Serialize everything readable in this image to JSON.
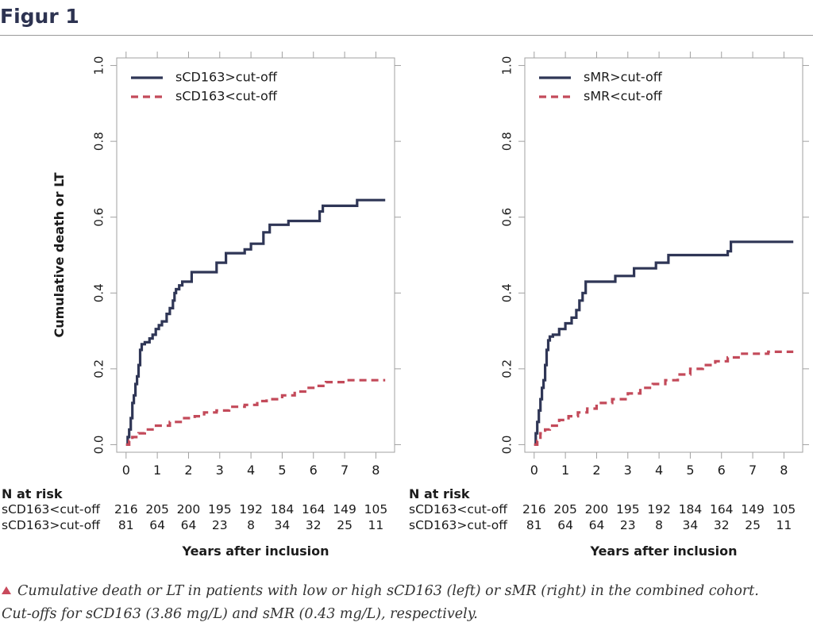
{
  "header": {
    "title": "Figur 1"
  },
  "caption": {
    "lines": [
      "Cumulative death or LT in patients with low or high sCD163 (left) or sMR (right) in the combined cohort.",
      "Cut-offs for sCD163 (3.86 mg/L) and sMR (0.43 mg/L), respectively."
    ],
    "marker_color": "#c84a5c"
  },
  "chart_data": [
    {
      "type": "line",
      "xlabel": "Years after inclusion",
      "ylabel": "Cumulative death or LT",
      "x_ticks": [
        0,
        1,
        2,
        3,
        4,
        5,
        6,
        7,
        8
      ],
      "x_tick_labels": [
        "0",
        "1",
        "2",
        "3",
        "4",
        "5",
        "6",
        "7",
        "8"
      ],
      "y_ticks": [
        0,
        0.2,
        0.4,
        0.6,
        0.8,
        1
      ],
      "y_tick_labels": [
        "0.0",
        "0.2",
        "0.4",
        "0.6",
        "0.8",
        "1.0"
      ],
      "xlim": [
        -0.3,
        8.6
      ],
      "ylim": [
        -0.02,
        1.02
      ],
      "grid": false,
      "legend_position": "top-left",
      "series": [
        {
          "name": "sCD163>cut-off",
          "color": "#2f3656",
          "dash": "solid",
          "x": [
            0,
            0.05,
            0.1,
            0.15,
            0.2,
            0.25,
            0.3,
            0.35,
            0.4,
            0.45,
            0.5,
            0.6,
            0.75,
            0.85,
            0.95,
            1.05,
            1.15,
            1.3,
            1.4,
            1.5,
            1.55,
            1.6,
            1.7,
            1.8,
            2.1,
            2.9,
            3.2,
            3.8,
            4.0,
            4.4,
            4.6,
            5.2,
            6.2,
            6.3,
            7.4,
            8.3
          ],
          "y": [
            0,
            0.02,
            0.04,
            0.07,
            0.11,
            0.13,
            0.16,
            0.18,
            0.21,
            0.25,
            0.265,
            0.27,
            0.28,
            0.29,
            0.305,
            0.315,
            0.325,
            0.345,
            0.36,
            0.38,
            0.4,
            0.41,
            0.42,
            0.43,
            0.455,
            0.48,
            0.505,
            0.515,
            0.53,
            0.56,
            0.58,
            0.59,
            0.615,
            0.63,
            0.645,
            0.645
          ]
        },
        {
          "name": "sCD163<cut-off",
          "color": "#c34a5a",
          "dash": "dashed",
          "x": [
            0,
            0.1,
            0.2,
            0.4,
            0.6,
            0.9,
            1.4,
            1.8,
            2.2,
            2.5,
            2.9,
            3.3,
            3.8,
            4.2,
            4.5,
            5.0,
            5.4,
            5.8,
            6.1,
            6.4,
            7.0,
            8.3
          ],
          "y": [
            0,
            0.01,
            0.02,
            0.03,
            0.04,
            0.05,
            0.06,
            0.07,
            0.075,
            0.085,
            0.09,
            0.1,
            0.105,
            0.115,
            0.12,
            0.13,
            0.14,
            0.15,
            0.155,
            0.165,
            0.17,
            0.17
          ]
        }
      ],
      "risk_table": {
        "heading": "N at risk",
        "rows": [
          {
            "label": "sCD163<cut-off",
            "values": [
              "216",
              "205",
              "200",
              "195",
              "192",
              "184",
              "164",
              "149",
              "105"
            ]
          },
          {
            "label": "sCD163>cut-off",
            "values": [
              "81",
              "64",
              "64",
              "23",
              "8",
              "34",
              "32",
              "25",
              "11"
            ]
          }
        ]
      }
    },
    {
      "type": "line",
      "xlabel": "Years after inclusion",
      "ylabel": "",
      "x_ticks": [
        0,
        1,
        2,
        3,
        4,
        5,
        6,
        7,
        8
      ],
      "x_tick_labels": [
        "0",
        "1",
        "2",
        "3",
        "4",
        "5",
        "6",
        "7",
        "8"
      ],
      "y_ticks": [
        0,
        0.2,
        0.4,
        0.6,
        0.8,
        1
      ],
      "y_tick_labels": [
        "0.0",
        "0.2",
        "0.4",
        "0.6",
        "0.8",
        "1.0"
      ],
      "xlim": [
        -0.3,
        8.6
      ],
      "ylim": [
        -0.02,
        1.02
      ],
      "grid": false,
      "legend_position": "top-left",
      "series": [
        {
          "name": "sMR>cut-off",
          "color": "#2f3656",
          "dash": "solid",
          "x": [
            0,
            0.05,
            0.1,
            0.15,
            0.2,
            0.25,
            0.3,
            0.35,
            0.4,
            0.45,
            0.5,
            0.6,
            0.8,
            1.0,
            1.2,
            1.35,
            1.45,
            1.55,
            1.65,
            2.6,
            3.2,
            3.9,
            4.3,
            6.2,
            6.3,
            8.3
          ],
          "y": [
            0,
            0.03,
            0.06,
            0.09,
            0.12,
            0.15,
            0.17,
            0.21,
            0.25,
            0.275,
            0.285,
            0.29,
            0.305,
            0.32,
            0.335,
            0.355,
            0.38,
            0.4,
            0.43,
            0.445,
            0.465,
            0.48,
            0.5,
            0.51,
            0.535,
            0.535
          ]
        },
        {
          "name": "sMR<cut-off",
          "color": "#c34a5a",
          "dash": "dashed",
          "x": [
            0,
            0.1,
            0.2,
            0.35,
            0.5,
            0.8,
            1.1,
            1.4,
            1.7,
            2.0,
            2.5,
            3.0,
            3.4,
            3.8,
            4.2,
            4.6,
            5.0,
            5.4,
            5.8,
            6.2,
            6.6,
            7.5,
            8.3
          ],
          "y": [
            0,
            0.01,
            0.03,
            0.04,
            0.05,
            0.065,
            0.075,
            0.085,
            0.095,
            0.11,
            0.12,
            0.135,
            0.15,
            0.16,
            0.17,
            0.185,
            0.2,
            0.21,
            0.22,
            0.23,
            0.24,
            0.245,
            0.245
          ]
        }
      ],
      "risk_table": {
        "heading": "N at risk",
        "rows": [
          {
            "label": "sCD163<cut-off",
            "values": [
              "216",
              "205",
              "200",
              "195",
              "192",
              "184",
              "164",
              "149",
              "105"
            ]
          },
          {
            "label": "sCD163>cut-off",
            "values": [
              "81",
              "64",
              "64",
              "23",
              "8",
              "34",
              "32",
              "25",
              "11"
            ]
          }
        ]
      }
    }
  ]
}
